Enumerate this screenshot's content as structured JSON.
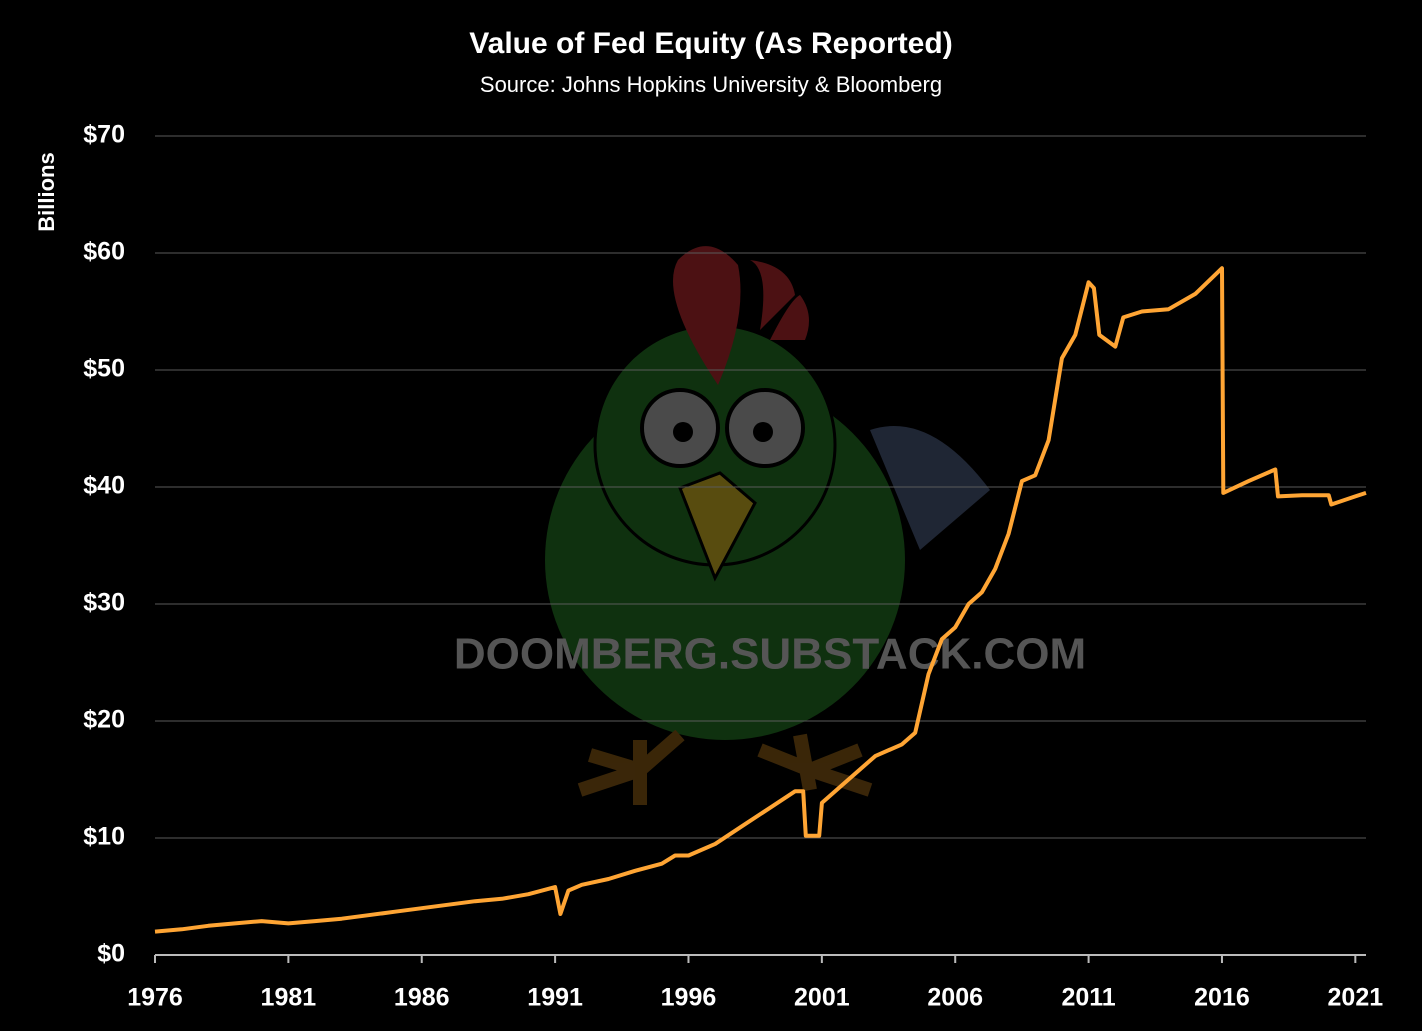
{
  "chart_data": {
    "type": "line",
    "title": "Value of Fed Equity (As Reported)",
    "subtitle": "Source: Johns Hopkins University & Bloomberg",
    "y_label": "Billions",
    "watermark": "DOOMBERG.SUBSTACK.COM",
    "color": "#ffa534",
    "grid": true,
    "x": [
      1976,
      1977,
      1978,
      1979,
      1980,
      1981,
      1982,
      1983,
      1984,
      1985,
      1986,
      1987,
      1988,
      1989,
      1990,
      1991,
      1991.2,
      1991.5,
      1992,
      1993,
      1994,
      1995,
      1995.5,
      1996,
      1997,
      1998,
      1999,
      2000,
      2000.3,
      2000.4,
      2000.9,
      2001,
      2002,
      2003,
      2004,
      2004.5,
      2005,
      2005.5,
      2006,
      2006.5,
      2007,
      2007.5,
      2008,
      2008.5,
      2009,
      2009.5,
      2010,
      2010.5,
      2011,
      2011.2,
      2011.4,
      2012,
      2012.3,
      2013,
      2014,
      2015,
      2016,
      2016.05,
      2017,
      2018,
      2018.1,
      2019,
      2020,
      2020.1,
      2021,
      2021.4
    ],
    "values": [
      2.0,
      2.2,
      2.5,
      2.7,
      2.9,
      2.7,
      2.9,
      3.1,
      3.4,
      3.7,
      4.0,
      4.3,
      4.6,
      4.8,
      5.2,
      5.8,
      3.5,
      5.5,
      6.0,
      6.5,
      7.2,
      7.8,
      8.5,
      8.5,
      9.5,
      11.0,
      12.5,
      14.0,
      14.0,
      10.2,
      10.2,
      13.0,
      15.0,
      17.0,
      18.0,
      19.0,
      24,
      27,
      28,
      30,
      31,
      33,
      36,
      40.5,
      41,
      44,
      51,
      53,
      57.5,
      57,
      53,
      52,
      54.5,
      55,
      55.2,
      56.5,
      58.7,
      39.5,
      40.5,
      41.5,
      39.2,
      39.3,
      39.3,
      38.5,
      39.2,
      39.5
    ],
    "xlim": [
      1976,
      2021.4
    ],
    "xticks": [
      1976,
      1981,
      1986,
      1991,
      1996,
      2001,
      2006,
      2011,
      2016,
      2021
    ],
    "ylim": [
      0,
      70
    ],
    "yticks": [
      {
        "value": 0,
        "label": "$0"
      },
      {
        "value": 10,
        "label": "$10"
      },
      {
        "value": 20,
        "label": "$20"
      },
      {
        "value": 30,
        "label": "$30"
      },
      {
        "value": 40,
        "label": "$40"
      },
      {
        "value": 50,
        "label": "$50"
      },
      {
        "value": 60,
        "label": "$60"
      },
      {
        "value": 70,
        "label": "$70"
      }
    ]
  }
}
